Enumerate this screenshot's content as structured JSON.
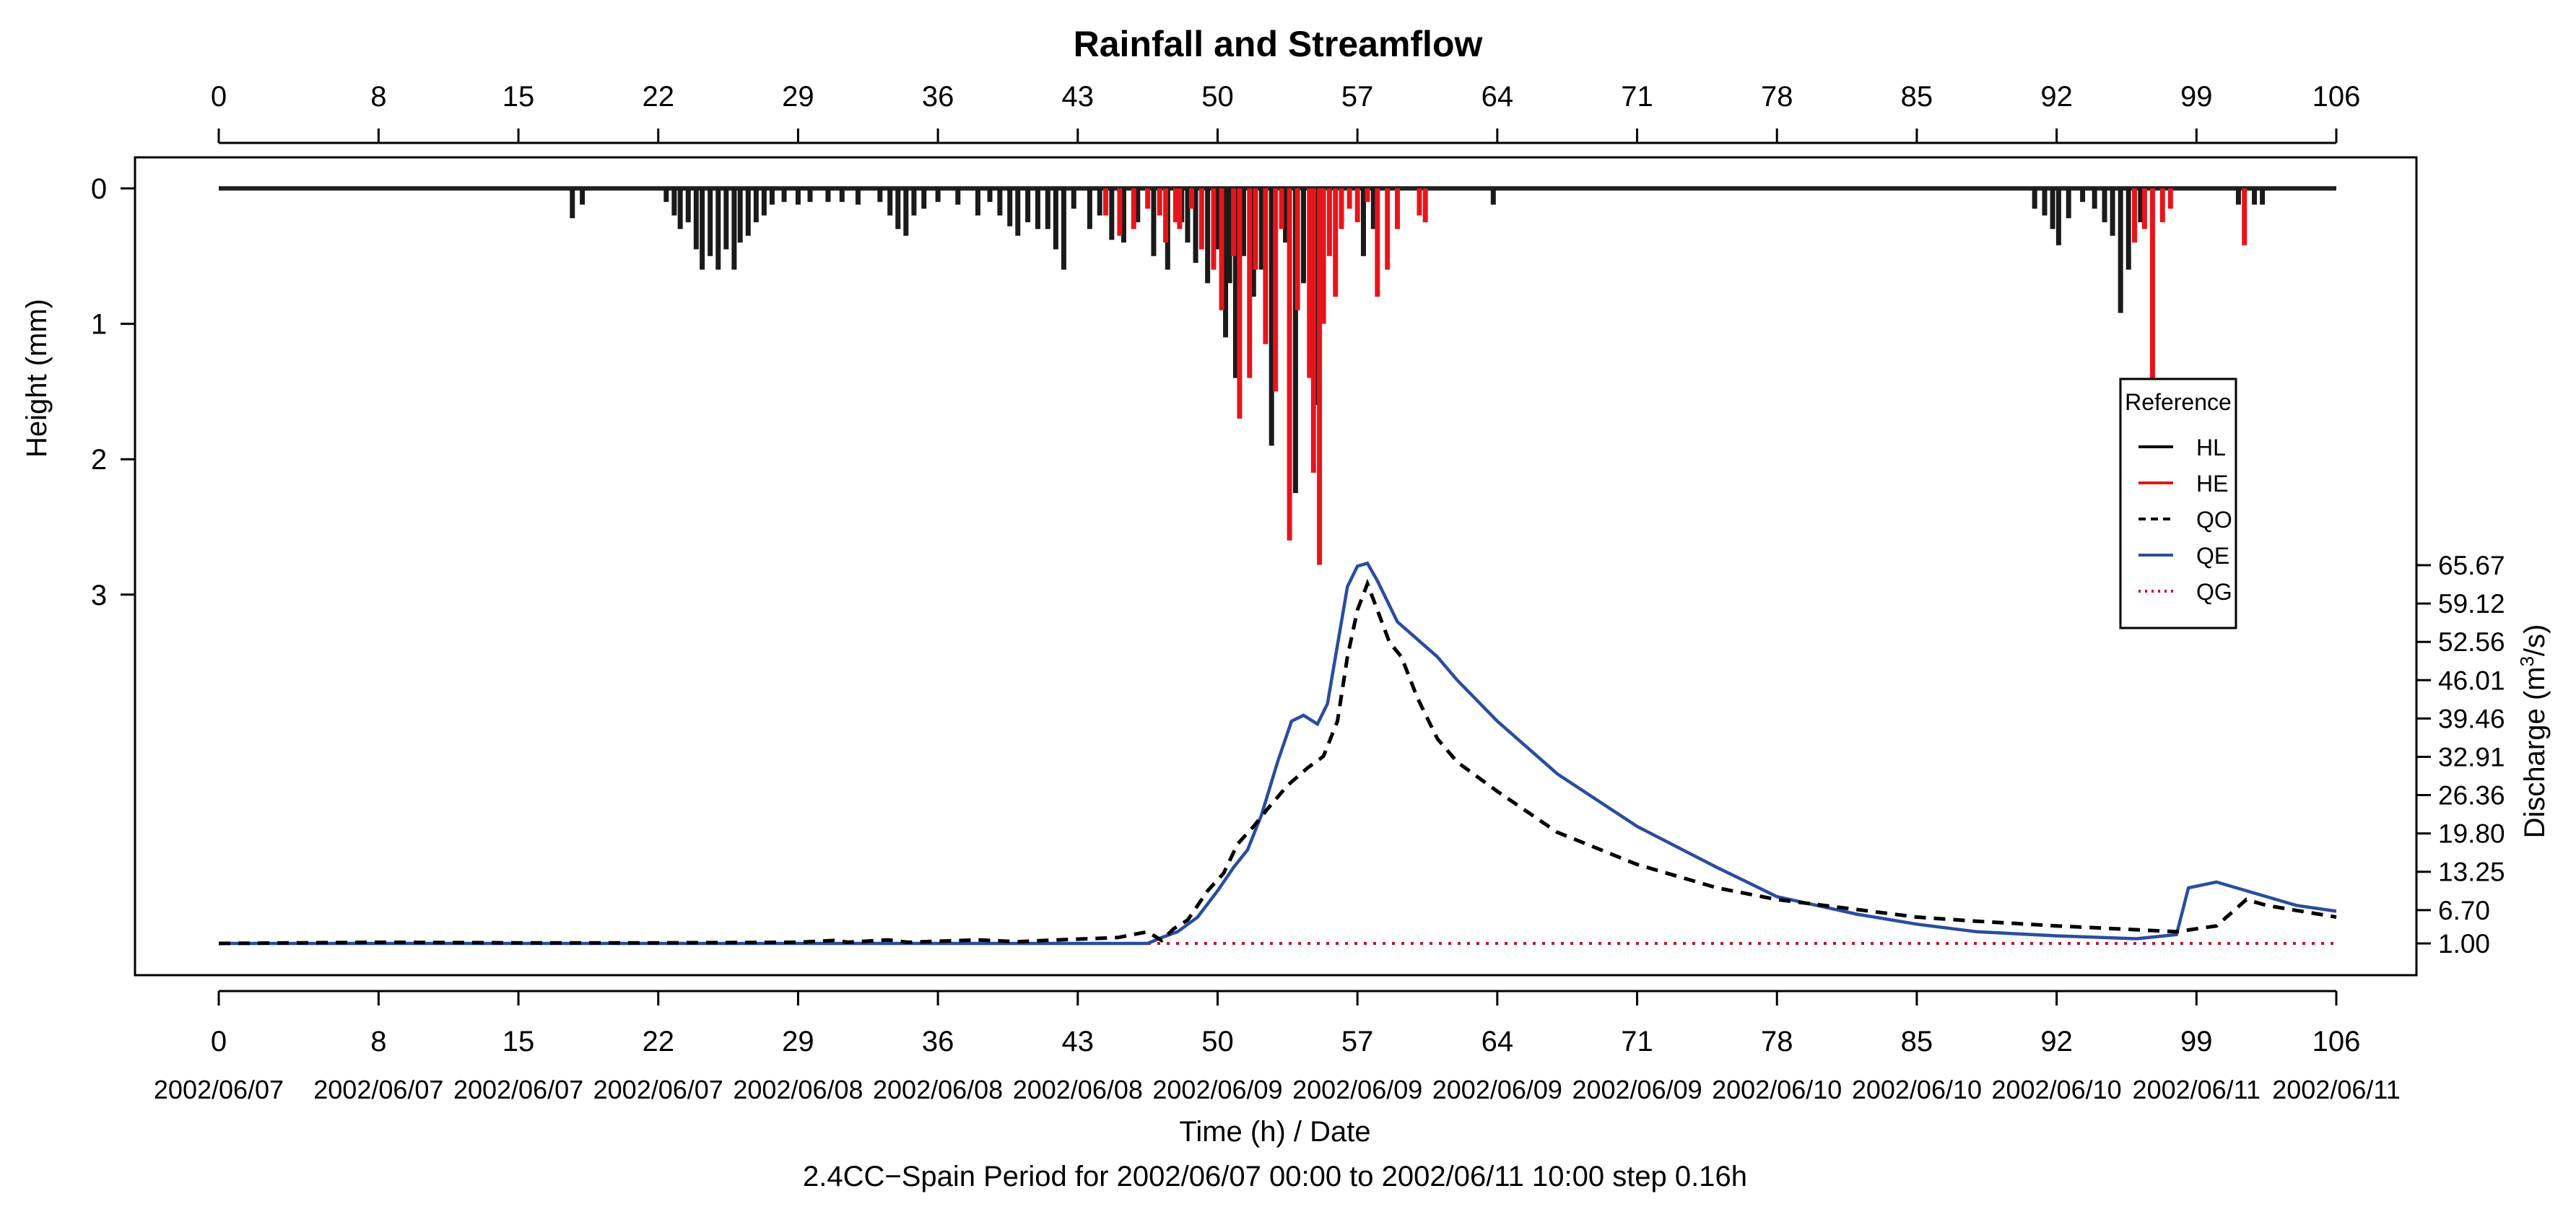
{
  "chart_data": {
    "type": "hyetograph-hydrograph",
    "title": "Rainfall and Streamflow",
    "xlabel": "Time (h) / Date",
    "subtitle": "2.4CC−Spain Period for 2002/06/07 00:00 to 2002/06/11 10:00 step 0.16h",
    "ylabel_left": "Height (mm)",
    "ylabel_right": "Discharge (m³/s)",
    "ylabel_right_parts": {
      "base": "Discharge (m",
      "sup": "3",
      "tail": "/s)"
    },
    "xlim": [
      0,
      106
    ],
    "x_ticks": [
      0,
      8,
      15,
      22,
      29,
      36,
      43,
      50,
      57,
      64,
      71,
      78,
      85,
      92,
      99,
      106
    ],
    "x_dates": [
      "2002/06/07",
      "2002/06/07",
      "2002/06/07",
      "2002/06/07",
      "2002/06/08",
      "2002/06/08",
      "2002/06/08",
      "2002/06/09",
      "2002/06/09",
      "2002/06/09",
      "2002/06/09",
      "2002/06/10",
      "2002/06/10",
      "2002/06/10",
      "2002/06/11",
      "2002/06/11"
    ],
    "rain_ylim": [
      0,
      3
    ],
    "rain_ticks": [
      0,
      1,
      2,
      3
    ],
    "q_ticks": [
      "1.00",
      "6.70",
      "13.25",
      "19.80",
      "26.36",
      "32.91",
      "39.46",
      "46.01",
      "52.56",
      "59.12",
      "65.67"
    ],
    "q_range": [
      1.0,
      65.67
    ],
    "legend": {
      "title": "Reference",
      "position": "right",
      "entries": [
        {
          "label": "HL",
          "color": "#000000",
          "style": "solid"
        },
        {
          "label": "HE",
          "color": "#e8141b",
          "style": "solid"
        },
        {
          "label": "QO",
          "color": "#000000",
          "style": "dashed"
        },
        {
          "label": "QE",
          "color": "#2a4d9e",
          "style": "solid"
        },
        {
          "label": "QG",
          "color": "#c8102e",
          "style": "dotted"
        }
      ]
    },
    "colors": {
      "HL": "#1a1a1a",
      "HE": "#e8141b",
      "QO": "#000000",
      "QE": "#2a4d9e",
      "QG": "#c8102e"
    },
    "HL": [
      [
        17.7,
        0.22
      ],
      [
        18.2,
        0.12
      ],
      [
        22.4,
        0.1
      ],
      [
        22.8,
        0.2
      ],
      [
        23.1,
        0.3
      ],
      [
        23.5,
        0.25
      ],
      [
        23.9,
        0.45
      ],
      [
        24.2,
        0.6
      ],
      [
        24.6,
        0.5
      ],
      [
        25.0,
        0.6
      ],
      [
        25.4,
        0.45
      ],
      [
        25.8,
        0.6
      ],
      [
        26.1,
        0.4
      ],
      [
        26.5,
        0.35
      ],
      [
        26.9,
        0.25
      ],
      [
        27.3,
        0.2
      ],
      [
        27.7,
        0.12
      ],
      [
        28.3,
        0.1
      ],
      [
        29.0,
        0.12
      ],
      [
        29.6,
        0.1
      ],
      [
        30.5,
        0.1
      ],
      [
        31.2,
        0.1
      ],
      [
        32.0,
        0.12
      ],
      [
        33.1,
        0.1
      ],
      [
        33.6,
        0.2
      ],
      [
        34.0,
        0.3
      ],
      [
        34.4,
        0.35
      ],
      [
        34.8,
        0.2
      ],
      [
        35.3,
        0.15
      ],
      [
        36.0,
        0.1
      ],
      [
        37.0,
        0.12
      ],
      [
        38.0,
        0.2
      ],
      [
        38.6,
        0.1
      ],
      [
        39.1,
        0.2
      ],
      [
        39.6,
        0.28
      ],
      [
        40.0,
        0.35
      ],
      [
        40.5,
        0.25
      ],
      [
        41.0,
        0.3
      ],
      [
        41.5,
        0.3
      ],
      [
        41.9,
        0.45
      ],
      [
        42.3,
        0.6
      ],
      [
        42.8,
        0.15
      ],
      [
        43.6,
        0.3
      ],
      [
        44.1,
        0.2
      ],
      [
        44.7,
        0.38
      ],
      [
        45.3,
        0.4
      ],
      [
        46.0,
        0.25
      ],
      [
        46.8,
        0.5
      ],
      [
        47.5,
        0.6
      ],
      [
        48.2,
        0.25
      ],
      [
        48.5,
        0.4
      ],
      [
        48.9,
        0.55
      ],
      [
        49.5,
        0.7
      ],
      [
        50.0,
        0.45
      ],
      [
        50.4,
        1.1
      ],
      [
        50.6,
        0.7
      ],
      [
        50.9,
        1.4
      ],
      [
        51.3,
        0.5
      ],
      [
        51.8,
        0.8
      ],
      [
        52.2,
        0.6
      ],
      [
        52.7,
        1.9
      ],
      [
        53.4,
        0.4
      ],
      [
        53.9,
        2.25
      ],
      [
        54.3,
        0.7
      ],
      [
        54.9,
        1.6
      ],
      [
        57.3,
        0.5
      ],
      [
        57.8,
        0.3
      ],
      [
        63.8,
        0.12
      ],
      [
        90.9,
        0.15
      ],
      [
        91.4,
        0.2
      ],
      [
        91.8,
        0.3
      ],
      [
        92.1,
        0.42
      ],
      [
        92.6,
        0.22
      ],
      [
        93.3,
        0.1
      ],
      [
        93.9,
        0.15
      ],
      [
        94.4,
        0.25
      ],
      [
        94.8,
        0.35
      ],
      [
        95.2,
        0.92
      ],
      [
        95.6,
        0.6
      ],
      [
        96.2,
        0.25
      ],
      [
        101.1,
        0.12
      ],
      [
        101.9,
        0.12
      ],
      [
        102.3,
        0.12
      ]
    ],
    "HE": [
      [
        44.4,
        0.2
      ],
      [
        45.1,
        0.35
      ],
      [
        45.8,
        0.3
      ],
      [
        46.5,
        0.15
      ],
      [
        47.1,
        0.2
      ],
      [
        47.4,
        0.4
      ],
      [
        47.9,
        0.25
      ],
      [
        48.1,
        0.3
      ],
      [
        48.7,
        0.15
      ],
      [
        49.2,
        0.45
      ],
      [
        49.8,
        0.6
      ],
      [
        50.2,
        0.9
      ],
      [
        50.8,
        0.5
      ],
      [
        51.1,
        1.7
      ],
      [
        51.6,
        1.4
      ],
      [
        51.9,
        0.6
      ],
      [
        52.4,
        1.15
      ],
      [
        52.9,
        1.5
      ],
      [
        53.2,
        0.3
      ],
      [
        53.6,
        2.6
      ],
      [
        54.0,
        0.9
      ],
      [
        54.6,
        1.4
      ],
      [
        54.8,
        2.1
      ],
      [
        55.1,
        2.78
      ],
      [
        55.3,
        1.0
      ],
      [
        55.6,
        0.5
      ],
      [
        55.9,
        0.8
      ],
      [
        56.2,
        0.3
      ],
      [
        56.6,
        0.15
      ],
      [
        57.0,
        0.25
      ],
      [
        57.5,
        0.1
      ],
      [
        58.0,
        0.8
      ],
      [
        58.5,
        0.6
      ],
      [
        59.0,
        0.3
      ],
      [
        60.1,
        0.2
      ],
      [
        60.4,
        0.25
      ],
      [
        95.9,
        0.4
      ],
      [
        96.4,
        0.3
      ],
      [
        96.8,
        1.8
      ],
      [
        97.3,
        0.25
      ],
      [
        97.7,
        0.15
      ],
      [
        101.4,
        0.42
      ]
    ],
    "QO": [
      [
        0,
        1.0
      ],
      [
        8,
        1.2
      ],
      [
        15,
        1.1
      ],
      [
        22,
        1.1
      ],
      [
        29,
        1.2
      ],
      [
        30.8,
        1.5
      ],
      [
        31.5,
        1.2
      ],
      [
        33.5,
        1.6
      ],
      [
        34.5,
        1.2
      ],
      [
        38,
        1.6
      ],
      [
        40,
        1.3
      ],
      [
        42,
        1.6
      ],
      [
        45,
        2.0
      ],
      [
        46.5,
        3.0
      ],
      [
        47.2,
        1.5
      ],
      [
        47.8,
        3.5
      ],
      [
        48.5,
        5.0
      ],
      [
        49.5,
        10.0
      ],
      [
        50.3,
        13.0
      ],
      [
        51.0,
        18.0
      ],
      [
        51.8,
        21.0
      ],
      [
        52.5,
        24.0
      ],
      [
        53.5,
        28.0
      ],
      [
        54.5,
        31.0
      ],
      [
        55.3,
        33.0
      ],
      [
        56.0,
        39.0
      ],
      [
        56.5,
        50.0
      ],
      [
        57.0,
        58.0
      ],
      [
        57.5,
        62.5
      ],
      [
        58.0,
        58.0
      ],
      [
        58.6,
        52.5
      ],
      [
        59.2,
        50.0
      ],
      [
        60.0,
        43.0
      ],
      [
        61.0,
        36.0
      ],
      [
        62.0,
        32.0
      ],
      [
        64,
        27.0
      ],
      [
        67,
        20.0
      ],
      [
        71,
        14.5
      ],
      [
        75,
        10.5
      ],
      [
        78,
        8.5
      ],
      [
        82,
        6.8
      ],
      [
        85,
        5.5
      ],
      [
        88,
        4.8
      ],
      [
        92,
        4.0
      ],
      [
        95,
        3.5
      ],
      [
        98,
        3.0
      ],
      [
        100,
        4.0
      ],
      [
        101.5,
        8.5
      ],
      [
        102.5,
        7.5
      ],
      [
        106,
        5.5
      ]
    ],
    "QE": [
      [
        0,
        1.0
      ],
      [
        8,
        1.0
      ],
      [
        15,
        1.0
      ],
      [
        22,
        1.0
      ],
      [
        29,
        1.0
      ],
      [
        36,
        1.0
      ],
      [
        43,
        1.0
      ],
      [
        46.5,
        1.0
      ],
      [
        47.2,
        2.0
      ],
      [
        48,
        3.0
      ],
      [
        49,
        5.5
      ],
      [
        50,
        10.0
      ],
      [
        50.8,
        14.0
      ],
      [
        51.5,
        17.0
      ],
      [
        52.2,
        23.0
      ],
      [
        53,
        32.0
      ],
      [
        53.7,
        39.0
      ],
      [
        54.3,
        40.0
      ],
      [
        55.0,
        38.5
      ],
      [
        55.5,
        42.0
      ],
      [
        56.0,
        52.0
      ],
      [
        56.5,
        62.0
      ],
      [
        57.0,
        65.5
      ],
      [
        57.5,
        66.0
      ],
      [
        58.0,
        63.0
      ],
      [
        59.0,
        56.0
      ],
      [
        60,
        53.0
      ],
      [
        61,
        50.0
      ],
      [
        62,
        46.0
      ],
      [
        64,
        39.0
      ],
      [
        67,
        30.0
      ],
      [
        71,
        21.0
      ],
      [
        75,
        14.0
      ],
      [
        78,
        9.0
      ],
      [
        82,
        6.0
      ],
      [
        85,
        4.3
      ],
      [
        88,
        3.0
      ],
      [
        92,
        2.3
      ],
      [
        96,
        1.8
      ],
      [
        98.0,
        2.5
      ],
      [
        98.6,
        10.5
      ],
      [
        100,
        11.5
      ],
      [
        102,
        9.5
      ],
      [
        104,
        7.5
      ],
      [
        106,
        6.5
      ]
    ],
    "QG": [
      [
        0,
        1.0
      ],
      [
        106,
        1.0
      ]
    ]
  }
}
